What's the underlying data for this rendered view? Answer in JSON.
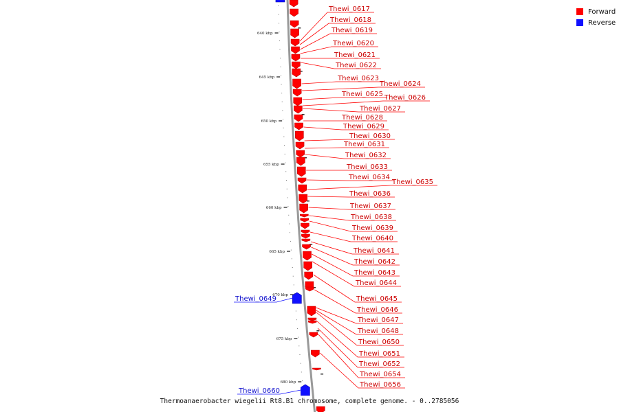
{
  "colors": {
    "forward": "#ff0000",
    "reverse": "#1010ff",
    "backbone": "#999999",
    "ticks": "#444444"
  },
  "legend": {
    "forward_label": "Forward",
    "reverse_label": "Reverse"
  },
  "caption": "Thermoanaerobacter wiegelii Rt8.B1 chromosome, complete genome. - 0..2785056",
  "coordinate_labels": [
    "640 kbp",
    "645 kbp",
    "650 kbp",
    "655 kbp",
    "660 kbp",
    "665 kbp",
    "670 kbp",
    "675 kbp",
    "680 kbp"
  ],
  "forward_genes": [
    "Thewi_0617",
    "Thewi_0618",
    "Thewi_0619",
    "Thewi_0620",
    "Thewi_0621",
    "Thewi_0622",
    "Thewi_0623",
    "Thewi_0624",
    "Thewi_0625",
    "Thewi_0626",
    "Thewi_0627",
    "Thewi_0628",
    "Thewi_0629",
    "Thewi_0630",
    "Thewi_0631",
    "Thewi_0632",
    "Thewi_0633",
    "Thewi_0634",
    "Thewi_0635",
    "Thewi_0636",
    "Thewi_0637",
    "Thewi_0638",
    "Thewi_0639",
    "Thewi_0640",
    "Thewi_0641",
    "Thewi_0642",
    "Thewi_0643",
    "Thewi_0644",
    "Thewi_0645",
    "Thewi_0646",
    "Thewi_0647",
    "Thewi_0648",
    "Thewi_0650",
    "Thewi_0651",
    "Thewi_0652",
    "Thewi_0654",
    "Thewi_0656"
  ],
  "reverse_genes": [
    "Thewi_0649",
    "Thewi_0660"
  ]
}
